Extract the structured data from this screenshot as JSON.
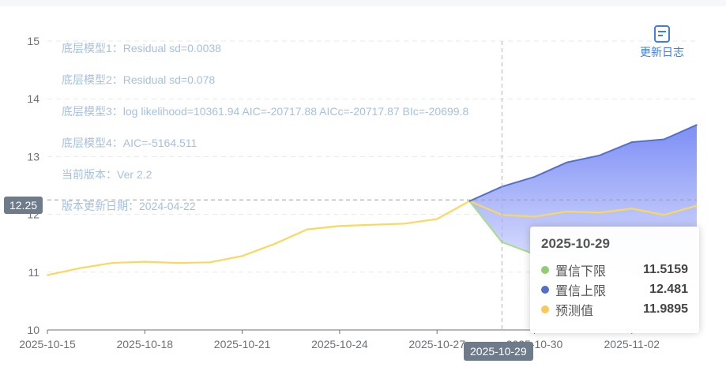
{
  "toolbar": {
    "update_log_label": "更新日志",
    "update_log_icon": "document-icon"
  },
  "annotations": [
    "底层模型1：Residual sd=0.0038",
    "底层模型2：Residual sd=0.078",
    "底层模型3：log likelihood=10361.94 AIC=-20717.88 AICc=-20717.87 BIc=-20699.8",
    "底层模型4：AIC=-5164.511",
    "当前版本：Ver 2.2",
    "版本更新日期：2024-04-22"
  ],
  "axis_pointer": {
    "y_value": "12.25",
    "x_value": "2025-10-29"
  },
  "tooltip": {
    "title": "2025-10-29",
    "rows": [
      {
        "name": "置信下限",
        "value": "11.5159",
        "color": "#91cc75"
      },
      {
        "name": "置信上限",
        "value": "12.481",
        "color": "#5470c6"
      },
      {
        "name": "预测值",
        "value": "11.9895",
        "color": "#fac858"
      }
    ]
  },
  "chart_data": {
    "type": "line",
    "x": [
      "2025-10-15",
      "2025-10-16",
      "2025-10-17",
      "2025-10-18",
      "2025-10-19",
      "2025-10-20",
      "2025-10-21",
      "2025-10-22",
      "2025-10-23",
      "2025-10-24",
      "2025-10-25",
      "2025-10-26",
      "2025-10-27",
      "2025-10-28",
      "2025-10-29",
      "2025-10-30",
      "2025-10-31",
      "2025-11-01",
      "2025-11-02",
      "2025-11-03",
      "2025-11-04"
    ],
    "xticks": [
      "2025-10-15",
      "2025-10-18",
      "2025-10-21",
      "2025-10-24",
      "2025-10-27",
      "2025-10-30",
      "2025-11-02"
    ],
    "ylim": [
      10,
      15
    ],
    "yticks": [
      10,
      11,
      12,
      13,
      14,
      15
    ],
    "grid": true,
    "series": [
      {
        "name": "预测值",
        "color": "#fad860",
        "values": [
          10.95,
          11.07,
          11.16,
          11.18,
          11.16,
          11.17,
          11.28,
          11.49,
          11.74,
          11.8,
          11.82,
          11.84,
          11.92,
          12.23,
          11.99,
          11.96,
          12.05,
          12.03,
          12.1,
          11.99,
          12.15
        ]
      },
      {
        "name": "置信下限",
        "color": "#91cc75",
        "values": [
          null,
          null,
          null,
          null,
          null,
          null,
          null,
          null,
          null,
          null,
          null,
          null,
          null,
          12.23,
          11.52,
          11.31,
          11.25,
          11.1,
          11.0,
          10.78,
          10.75
        ]
      },
      {
        "name": "置信上限",
        "color": "#5470c6",
        "values": [
          null,
          null,
          null,
          null,
          null,
          null,
          null,
          null,
          null,
          null,
          null,
          null,
          null,
          12.23,
          12.48,
          12.65,
          12.9,
          13.02,
          13.25,
          13.3,
          13.55
        ]
      }
    ]
  }
}
